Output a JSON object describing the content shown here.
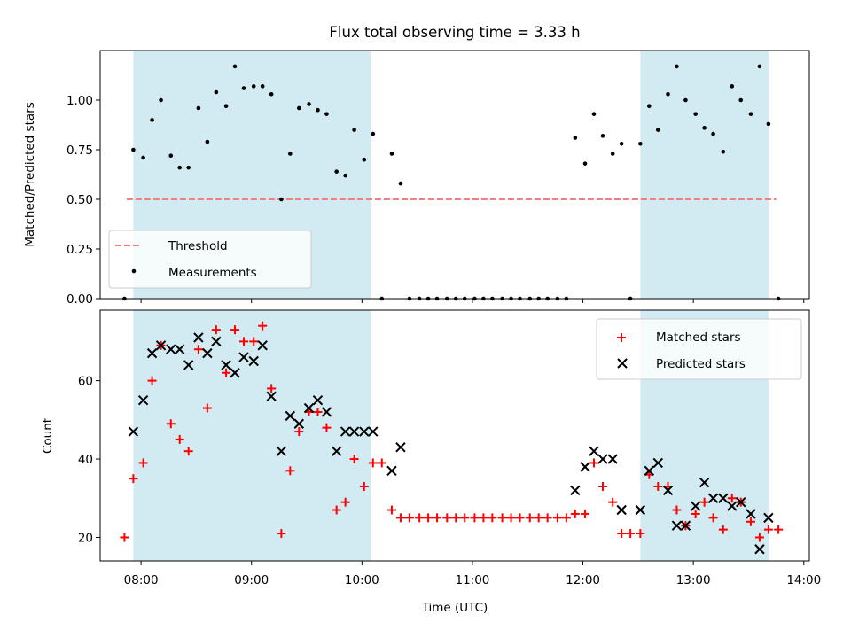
{
  "chart_data": [
    {
      "type": "scatter",
      "panel": "top",
      "title": "Flux total observing time = 3.33 h",
      "xlabel": "",
      "ylabel": "Matched/Predicted stars",
      "ylim": [
        0,
        1.25
      ],
      "yticks": [
        0.0,
        0.25,
        0.5,
        0.75,
        1.0
      ],
      "ytick_labels": [
        "0.00",
        "0.25",
        "0.50",
        "0.75",
        "1.00"
      ],
      "threshold": {
        "name": "Threshold",
        "value": 0.5,
        "x_start": 7.87,
        "x_end": 13.75,
        "color": "#f08080"
      },
      "legend": [
        "Threshold",
        "Measurements"
      ],
      "legend_loc": "lower-left",
      "series": [
        {
          "name": "Measurements",
          "color": "#000000",
          "points": [
            [
              7.85,
              0.0
            ],
            [
              7.93,
              0.75
            ],
            [
              8.02,
              0.71
            ],
            [
              8.1,
              0.9
            ],
            [
              8.18,
              1.0
            ],
            [
              8.27,
              0.72
            ],
            [
              8.35,
              0.66
            ],
            [
              8.43,
              0.66
            ],
            [
              8.52,
              0.96
            ],
            [
              8.6,
              0.79
            ],
            [
              8.68,
              1.04
            ],
            [
              8.77,
              0.97
            ],
            [
              8.85,
              1.17
            ],
            [
              8.93,
              1.06
            ],
            [
              9.02,
              1.07
            ],
            [
              9.1,
              1.07
            ],
            [
              9.18,
              1.03
            ],
            [
              9.27,
              0.5
            ],
            [
              9.35,
              0.73
            ],
            [
              9.43,
              0.96
            ],
            [
              9.52,
              0.98
            ],
            [
              9.6,
              0.95
            ],
            [
              9.68,
              0.93
            ],
            [
              9.77,
              0.64
            ],
            [
              9.85,
              0.62
            ],
            [
              9.93,
              0.85
            ],
            [
              10.02,
              0.7
            ],
            [
              10.1,
              0.83
            ],
            [
              10.18,
              0.0
            ],
            [
              10.27,
              0.73
            ],
            [
              10.35,
              0.58
            ],
            [
              10.43,
              0.0
            ],
            [
              10.52,
              0.0
            ],
            [
              10.6,
              0.0
            ],
            [
              10.68,
              0.0
            ],
            [
              10.77,
              0.0
            ],
            [
              10.85,
              0.0
            ],
            [
              10.93,
              0.0
            ],
            [
              11.02,
              0.0
            ],
            [
              11.1,
              0.0
            ],
            [
              11.18,
              0.0
            ],
            [
              11.27,
              0.0
            ],
            [
              11.35,
              0.0
            ],
            [
              11.43,
              0.0
            ],
            [
              11.52,
              0.0
            ],
            [
              11.6,
              0.0
            ],
            [
              11.68,
              0.0
            ],
            [
              11.77,
              0.0
            ],
            [
              11.85,
              0.0
            ],
            [
              11.93,
              0.81
            ],
            [
              12.02,
              0.68
            ],
            [
              12.1,
              0.93
            ],
            [
              12.18,
              0.82
            ],
            [
              12.27,
              0.73
            ],
            [
              12.35,
              0.78
            ],
            [
              12.43,
              0.0
            ],
            [
              12.52,
              0.78
            ],
            [
              12.6,
              0.97
            ],
            [
              12.68,
              0.85
            ],
            [
              12.77,
              1.03
            ],
            [
              12.85,
              1.17
            ],
            [
              12.93,
              1.0
            ],
            [
              13.02,
              0.93
            ],
            [
              13.1,
              0.86
            ],
            [
              13.18,
              0.83
            ],
            [
              13.27,
              0.74
            ],
            [
              13.35,
              1.07
            ],
            [
              13.43,
              1.0
            ],
            [
              13.52,
              0.93
            ],
            [
              13.6,
              1.17
            ],
            [
              13.68,
              0.88
            ],
            [
              13.77,
              0.0
            ]
          ]
        }
      ]
    },
    {
      "type": "scatter",
      "panel": "bottom",
      "title": "",
      "xlabel": "Time (UTC)",
      "ylabel": "Count",
      "xlim": [
        7.63,
        14.05
      ],
      "ylim": [
        14,
        78
      ],
      "xticks": [
        8,
        9,
        10,
        11,
        12,
        13,
        14
      ],
      "xtick_labels": [
        "08:00",
        "09:00",
        "10:00",
        "11:00",
        "12:00",
        "13:00",
        "14:00"
      ],
      "yticks": [
        20,
        40,
        60
      ],
      "ytick_labels": [
        "20",
        "40",
        "60"
      ],
      "legend": [
        "Matched stars",
        "Predicted stars"
      ],
      "legend_loc": "top-right",
      "series": [
        {
          "name": "Matched stars",
          "marker": "plus",
          "color": "#ff0000",
          "points": [
            [
              7.85,
              20
            ],
            [
              7.93,
              35
            ],
            [
              8.02,
              39
            ],
            [
              8.1,
              60
            ],
            [
              8.18,
              69
            ],
            [
              8.27,
              49
            ],
            [
              8.35,
              45
            ],
            [
              8.43,
              42
            ],
            [
              8.52,
              68
            ],
            [
              8.6,
              53
            ],
            [
              8.68,
              73
            ],
            [
              8.77,
              62
            ],
            [
              8.85,
              73
            ],
            [
              8.93,
              70
            ],
            [
              9.02,
              70
            ],
            [
              9.1,
              74
            ],
            [
              9.18,
              58
            ],
            [
              9.27,
              21
            ],
            [
              9.35,
              37
            ],
            [
              9.43,
              47
            ],
            [
              9.52,
              52
            ],
            [
              9.6,
              52
            ],
            [
              9.68,
              48
            ],
            [
              9.77,
              27
            ],
            [
              9.85,
              29
            ],
            [
              9.93,
              40
            ],
            [
              10.02,
              33
            ],
            [
              10.1,
              39
            ],
            [
              10.18,
              39
            ],
            [
              10.27,
              27
            ],
            [
              10.35,
              25
            ],
            [
              10.43,
              25
            ],
            [
              10.52,
              25
            ],
            [
              10.6,
              25
            ],
            [
              10.68,
              25
            ],
            [
              10.77,
              25
            ],
            [
              10.85,
              25
            ],
            [
              10.93,
              25
            ],
            [
              11.02,
              25
            ],
            [
              11.1,
              25
            ],
            [
              11.18,
              25
            ],
            [
              11.27,
              25
            ],
            [
              11.35,
              25
            ],
            [
              11.43,
              25
            ],
            [
              11.52,
              25
            ],
            [
              11.6,
              25
            ],
            [
              11.68,
              25
            ],
            [
              11.77,
              25
            ],
            [
              11.85,
              25
            ],
            [
              11.93,
              26
            ],
            [
              12.02,
              26
            ],
            [
              12.1,
              39
            ],
            [
              12.18,
              33
            ],
            [
              12.27,
              29
            ],
            [
              12.35,
              21
            ],
            [
              12.43,
              21
            ],
            [
              12.52,
              21
            ],
            [
              12.6,
              36
            ],
            [
              12.68,
              33
            ],
            [
              12.77,
              33
            ],
            [
              12.85,
              27
            ],
            [
              12.93,
              23
            ],
            [
              13.02,
              26
            ],
            [
              13.1,
              29
            ],
            [
              13.18,
              25
            ],
            [
              13.27,
              22
            ],
            [
              13.35,
              30
            ],
            [
              13.43,
              29
            ],
            [
              13.52,
              24
            ],
            [
              13.6,
              20
            ],
            [
              13.68,
              22
            ],
            [
              13.77,
              22
            ]
          ]
        },
        {
          "name": "Predicted stars",
          "marker": "x",
          "color": "#000000",
          "points": [
            [
              7.93,
              47
            ],
            [
              8.02,
              55
            ],
            [
              8.1,
              67
            ],
            [
              8.18,
              69
            ],
            [
              8.27,
              68
            ],
            [
              8.35,
              68
            ],
            [
              8.43,
              64
            ],
            [
              8.52,
              71
            ],
            [
              8.6,
              67
            ],
            [
              8.68,
              70
            ],
            [
              8.77,
              64
            ],
            [
              8.85,
              62
            ],
            [
              8.93,
              66
            ],
            [
              9.02,
              65
            ],
            [
              9.1,
              69
            ],
            [
              9.18,
              56
            ],
            [
              9.27,
              42
            ],
            [
              9.35,
              51
            ],
            [
              9.43,
              49
            ],
            [
              9.52,
              53
            ],
            [
              9.6,
              55
            ],
            [
              9.68,
              52
            ],
            [
              9.77,
              42
            ],
            [
              9.85,
              47
            ],
            [
              9.93,
              47
            ],
            [
              10.02,
              47
            ],
            [
              10.1,
              47
            ],
            [
              10.27,
              37
            ],
            [
              10.35,
              43
            ],
            [
              11.93,
              32
            ],
            [
              12.02,
              38
            ],
            [
              12.1,
              42
            ],
            [
              12.18,
              40
            ],
            [
              12.27,
              40
            ],
            [
              12.35,
              27
            ],
            [
              12.52,
              27
            ],
            [
              12.6,
              37
            ],
            [
              12.68,
              39
            ],
            [
              12.77,
              32
            ],
            [
              12.85,
              23
            ],
            [
              12.93,
              23
            ],
            [
              13.02,
              28
            ],
            [
              13.1,
              34
            ],
            [
              13.18,
              30
            ],
            [
              13.27,
              30
            ],
            [
              13.35,
              28
            ],
            [
              13.43,
              29
            ],
            [
              13.52,
              26
            ],
            [
              13.6,
              17
            ],
            [
              13.68,
              25
            ]
          ]
        }
      ]
    }
  ],
  "shaded_regions": [
    {
      "start": 7.93,
      "end": 10.08
    },
    {
      "start": 12.52,
      "end": 13.68
    }
  ],
  "colors": {
    "shade": "#add8e6",
    "threshold": "#f08080",
    "matched": "#ff0000",
    "predicted": "#000000",
    "measurement": "#000000"
  }
}
